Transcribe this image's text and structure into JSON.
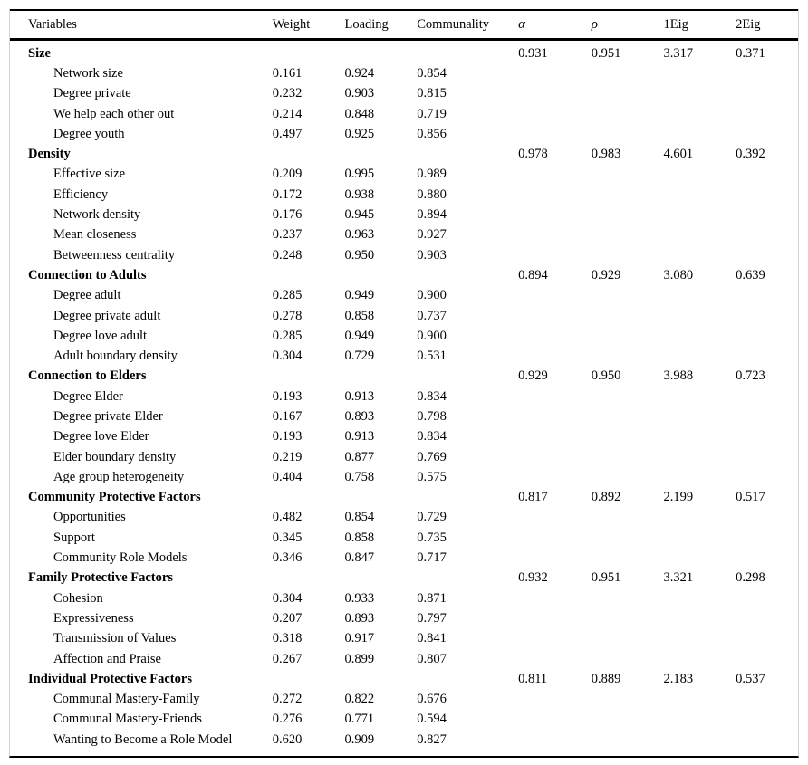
{
  "table": {
    "columns": [
      "Variables",
      "Weight",
      "Loading",
      "Communality",
      "α",
      "ρ",
      "1Eig",
      "2Eig"
    ],
    "rows": [
      {
        "type": "section",
        "label": "Size",
        "alpha": "0.931",
        "rho": "0.951",
        "eig1": "3.317",
        "eig2": "0.371"
      },
      {
        "type": "item",
        "label": "Network size",
        "weight": "0.161",
        "loading": "0.924",
        "communality": "0.854"
      },
      {
        "type": "item",
        "label": "Degree private",
        "weight": "0.232",
        "loading": "0.903",
        "communality": "0.815"
      },
      {
        "type": "item",
        "label": "We help each other out",
        "weight": "0.214",
        "loading": "0.848",
        "communality": "0.719"
      },
      {
        "type": "item",
        "label": "Degree youth",
        "weight": "0.497",
        "loading": "0.925",
        "communality": "0.856"
      },
      {
        "type": "section",
        "label": "Density",
        "alpha": "0.978",
        "rho": "0.983",
        "eig1": "4.601",
        "eig2": "0.392"
      },
      {
        "type": "item",
        "label": "Effective size",
        "weight": "0.209",
        "loading": "0.995",
        "communality": "0.989"
      },
      {
        "type": "item",
        "label": "Efficiency",
        "weight": "0.172",
        "loading": "0.938",
        "communality": "0.880"
      },
      {
        "type": "item",
        "label": "Network density",
        "weight": "0.176",
        "loading": "0.945",
        "communality": "0.894"
      },
      {
        "type": "item",
        "label": "Mean closeness",
        "weight": "0.237",
        "loading": "0.963",
        "communality": "0.927"
      },
      {
        "type": "item",
        "label": "Betweenness centrality",
        "weight": "0.248",
        "loading": "0.950",
        "communality": "0.903"
      },
      {
        "type": "section",
        "label": "Connection to Adults",
        "alpha": "0.894",
        "rho": "0.929",
        "eig1": "3.080",
        "eig2": "0.639"
      },
      {
        "type": "item",
        "label": "Degree adult",
        "weight": "0.285",
        "loading": "0.949",
        "communality": "0.900"
      },
      {
        "type": "item",
        "label": "Degree private adult",
        "weight": "0.278",
        "loading": "0.858",
        "communality": "0.737"
      },
      {
        "type": "item",
        "label": "Degree love adult",
        "weight": "0.285",
        "loading": "0.949",
        "communality": "0.900"
      },
      {
        "type": "item",
        "label": "Adult boundary density",
        "weight": "0.304",
        "loading": "0.729",
        "communality": "0.531"
      },
      {
        "type": "section",
        "label": "Connection to Elders",
        "alpha": "0.929",
        "rho": "0.950",
        "eig1": "3.988",
        "eig2": "0.723"
      },
      {
        "type": "item",
        "label": "Degree Elder",
        "weight": "0.193",
        "loading": "0.913",
        "communality": "0.834"
      },
      {
        "type": "item",
        "label": "Degree private Elder",
        "weight": "0.167",
        "loading": "0.893",
        "communality": "0.798"
      },
      {
        "type": "item",
        "label": "Degree love Elder",
        "weight": "0.193",
        "loading": "0.913",
        "communality": "0.834"
      },
      {
        "type": "item",
        "label": "Elder boundary density",
        "weight": "0.219",
        "loading": "0.877",
        "communality": "0.769"
      },
      {
        "type": "item",
        "label": "Age group heterogeneity",
        "weight": "0.404",
        "loading": "0.758",
        "communality": "0.575"
      },
      {
        "type": "section",
        "label": "Community Protective Factors",
        "alpha": "0.817",
        "rho": "0.892",
        "eig1": "2.199",
        "eig2": "0.517"
      },
      {
        "type": "item",
        "label": "Opportunities",
        "weight": "0.482",
        "loading": "0.854",
        "communality": "0.729"
      },
      {
        "type": "item",
        "label": "Support",
        "weight": "0.345",
        "loading": "0.858",
        "communality": "0.735"
      },
      {
        "type": "item",
        "label": "Community Role Models",
        "weight": "0.346",
        "loading": "0.847",
        "communality": "0.717"
      },
      {
        "type": "section",
        "label": "Family Protective Factors",
        "alpha": "0.932",
        "rho": "0.951",
        "eig1": "3.321",
        "eig2": "0.298"
      },
      {
        "type": "item",
        "label": "Cohesion",
        "weight": "0.304",
        "loading": "0.933",
        "communality": "0.871"
      },
      {
        "type": "item",
        "label": "Expressiveness",
        "weight": "0.207",
        "loading": "0.893",
        "communality": "0.797"
      },
      {
        "type": "item",
        "label": "Transmission of Values",
        "weight": "0.318",
        "loading": "0.917",
        "communality": "0.841"
      },
      {
        "type": "item",
        "label": "Affection and Praise",
        "weight": "0.267",
        "loading": "0.899",
        "communality": "0.807"
      },
      {
        "type": "section",
        "label": "Individual Protective Factors",
        "alpha": "0.811",
        "rho": "0.889",
        "eig1": "2.183",
        "eig2": "0.537"
      },
      {
        "type": "item",
        "label": "Communal Mastery-Family",
        "weight": "0.272",
        "loading": "0.822",
        "communality": "0.676"
      },
      {
        "type": "item",
        "label": "Communal Mastery-Friends",
        "weight": "0.276",
        "loading": "0.771",
        "communality": "0.594"
      },
      {
        "type": "item",
        "label": "Wanting to Become a Role Model",
        "weight": "0.620",
        "loading": "0.909",
        "communality": "0.827"
      }
    ]
  },
  "colors": {
    "rule": "#000000",
    "outer_border": "#d4d4d4",
    "text": "#000000",
    "background": "#ffffff"
  }
}
